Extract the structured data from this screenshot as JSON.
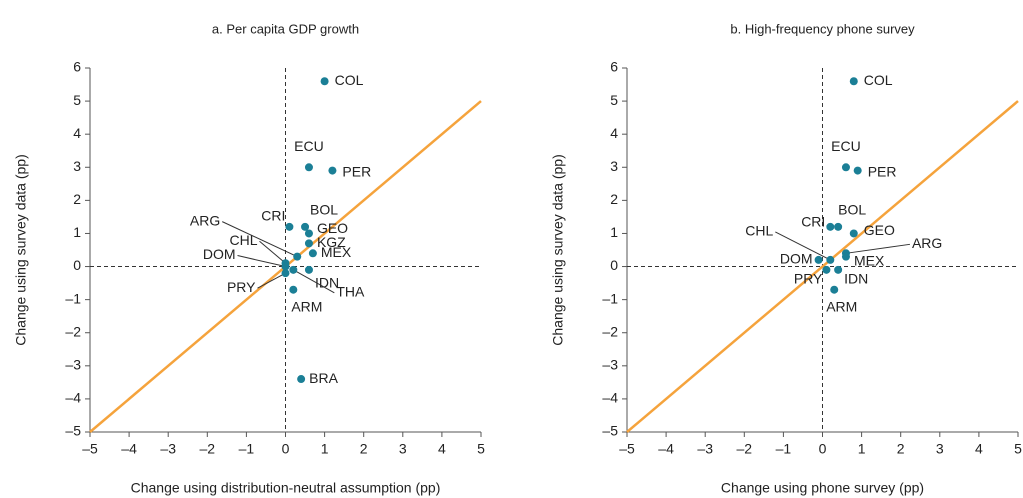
{
  "chart_data": [
    {
      "type": "scatter",
      "title": "a. Per capita GDP growth",
      "x_label": "Change using distribution-neutral assumption (pp)",
      "y_label": "Change using survey data (pp)",
      "labels": [
        "COL",
        "ECU",
        "PER",
        "BOL",
        "CRI",
        "GEO",
        "KGZ",
        "MEX",
        "ARG",
        "CHL",
        "DOM",
        "IDN",
        "PRY",
        "THA",
        "ARM",
        "BRA"
      ],
      "x": [
        1.0,
        0.6,
        1.2,
        0.5,
        0.1,
        0.6,
        0.6,
        0.7,
        0.3,
        0.0,
        0.0,
        0.6,
        0.0,
        0.2,
        0.2,
        0.4
      ],
      "y": [
        5.6,
        3.0,
        2.9,
        1.2,
        1.2,
        1.0,
        0.7,
        0.4,
        0.3,
        0.1,
        0.0,
        -0.1,
        -0.2,
        -0.1,
        -0.7,
        -3.4
      ],
      "color": "#1b7f96",
      "diagonal_color": "#f5a33c",
      "xlim": [
        -5,
        5
      ],
      "ylim": [
        -5,
        6
      ],
      "xticks": [
        {
          "value": -5,
          "label": "–5"
        },
        {
          "value": -4,
          "label": "–4"
        },
        {
          "value": -3,
          "label": "–3"
        },
        {
          "value": -2,
          "label": "–2"
        },
        {
          "value": -1,
          "label": "–1"
        },
        0,
        1,
        2,
        3,
        4,
        5
      ],
      "yticks": [
        {
          "value": -5,
          "label": "–5"
        },
        {
          "value": -4,
          "label": "–4"
        },
        {
          "value": -3,
          "label": "–3"
        },
        {
          "value": -2,
          "label": "–2"
        },
        {
          "value": -1,
          "label": "–1"
        },
        0,
        1,
        2,
        3,
        4,
        5,
        6
      ]
    },
    {
      "type": "scatter",
      "title": "b. High-frequency phone survey",
      "x_label": "Change using phone survey (pp)",
      "y_label": "Change using survey data (pp)",
      "labels": [
        "COL",
        "ECU",
        "PER",
        "BOL",
        "CRI",
        "GEO",
        "ARG",
        "MEX",
        "CHL",
        "DOM",
        "PRY",
        "IDN",
        "ARM"
      ],
      "x": [
        0.8,
        0.6,
        0.9,
        0.4,
        0.2,
        0.8,
        0.6,
        0.6,
        0.2,
        -0.1,
        0.1,
        0.4,
        0.3
      ],
      "y": [
        5.6,
        3.0,
        2.9,
        1.2,
        1.2,
        1.0,
        0.4,
        0.3,
        0.2,
        0.2,
        -0.1,
        -0.1,
        -0.7
      ],
      "color": "#1b7f96",
      "diagonal_color": "#f5a33c",
      "xlim": [
        -5,
        5
      ],
      "ylim": [
        -5,
        6
      ],
      "xticks": [
        {
          "value": -5,
          "label": "–5"
        },
        {
          "value": -4,
          "label": "–4"
        },
        {
          "value": -3,
          "label": "–3"
        },
        {
          "value": -2,
          "label": "–2"
        },
        {
          "value": -1,
          "label": "–1"
        },
        0,
        1,
        2,
        3,
        4,
        5
      ],
      "yticks": [
        {
          "value": -5,
          "label": "–5"
        },
        {
          "value": -4,
          "label": "–4"
        },
        {
          "value": -3,
          "label": "–3"
        },
        {
          "value": -2,
          "label": "–2"
        },
        {
          "value": -1,
          "label": "–1"
        },
        0,
        1,
        2,
        3,
        4,
        5,
        6
      ]
    }
  ]
}
